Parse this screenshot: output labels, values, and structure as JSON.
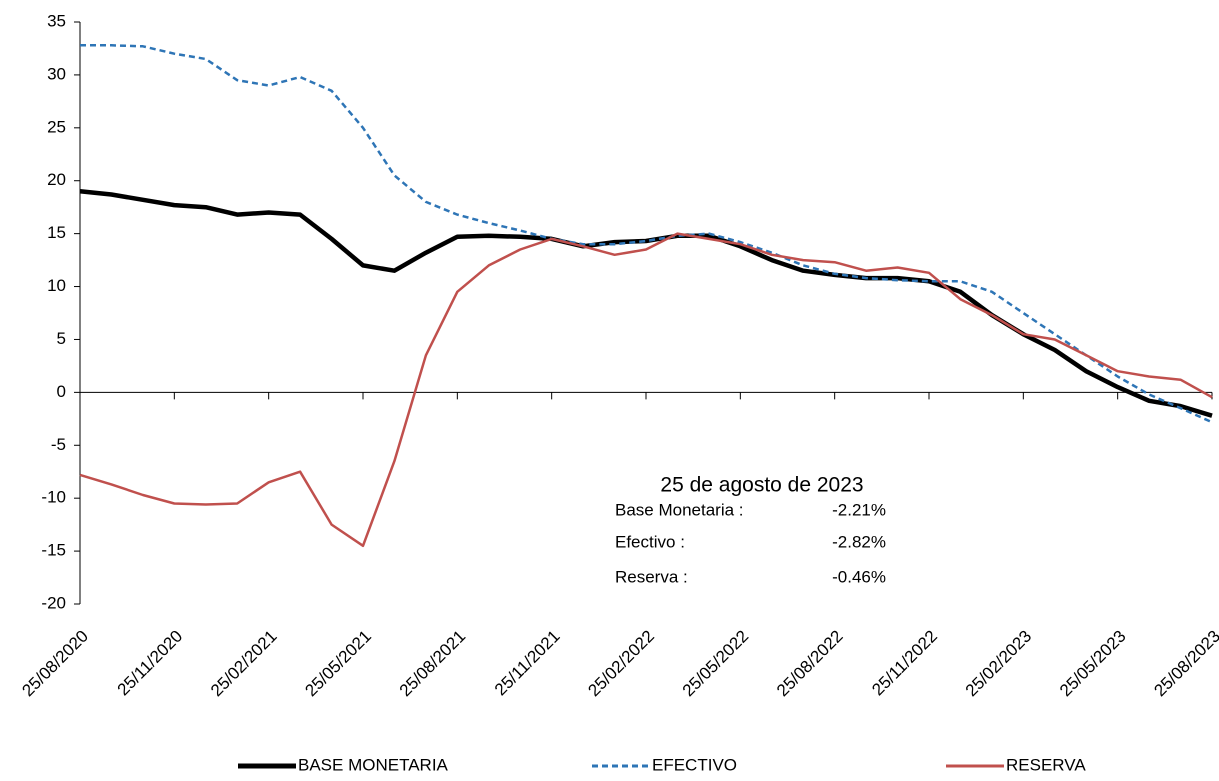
{
  "chart_data": {
    "type": "line",
    "categories": [
      "25/08/2020",
      null,
      null,
      "25/11/2020",
      null,
      null,
      "25/02/2021",
      null,
      null,
      "25/05/2021",
      null,
      null,
      "25/08/2021",
      null,
      null,
      "25/11/2021",
      null,
      null,
      "25/02/2022",
      null,
      null,
      "25/05/2022",
      null,
      null,
      "25/08/2022",
      null,
      null,
      "25/11/2022",
      null,
      null,
      "25/02/2023",
      null,
      null,
      "25/05/2023",
      null,
      null,
      "25/08/2023"
    ],
    "series": [
      {
        "name": "BASE MONETARIA",
        "color": "#000000",
        "dash": "solid",
        "values": [
          19,
          18.7,
          18.2,
          17.7,
          17.5,
          16.8,
          17.0,
          16.8,
          14.5,
          12.0,
          11.5,
          13.2,
          14.7,
          14.8,
          14.7,
          14.5,
          13.8,
          14.2,
          14.3,
          14.8,
          14.8,
          13.8,
          12.5,
          11.5,
          11.1,
          10.8,
          10.8,
          10.5,
          9.5,
          7.3,
          5.5,
          4.0,
          2.0,
          0.5,
          -0.8,
          -1.3,
          -2.21
        ]
      },
      {
        "name": "EFECTIVO",
        "color": "#2E75B6",
        "dash": "dashed",
        "values": [
          32.8,
          32.8,
          32.7,
          32.0,
          31.5,
          29.5,
          29.0,
          29.8,
          28.5,
          25.0,
          20.5,
          18.0,
          16.8,
          16.0,
          15.3,
          14.5,
          14.0,
          14.0,
          14.3,
          14.8,
          15.0,
          14.2,
          13.2,
          12.0,
          11.2,
          10.8,
          10.6,
          10.5,
          10.5,
          9.5,
          7.5,
          5.5,
          3.5,
          1.5,
          -0.2,
          -1.5,
          -2.82
        ]
      },
      {
        "name": "RESERVA",
        "color": "#C0504D",
        "dash": "solid",
        "values": [
          -7.8,
          -8.7,
          -9.7,
          -10.5,
          -10.6,
          -10.5,
          -8.5,
          -7.5,
          -12.5,
          -14.5,
          -6.5,
          3.5,
          9.5,
          12.0,
          13.5,
          14.5,
          13.8,
          13.0,
          13.5,
          15.0,
          14.5,
          14.0,
          13.0,
          12.5,
          12.3,
          11.5,
          11.8,
          11.3,
          8.8,
          7.3,
          5.5,
          5.0,
          3.5,
          2.0,
          1.5,
          1.2,
          -0.46
        ]
      }
    ],
    "ylim": [
      -20,
      35
    ],
    "yticks": [
      -20,
      -15,
      -10,
      -5,
      0,
      5,
      10,
      15,
      20,
      25,
      30,
      35
    ],
    "annotation": {
      "title": "25 de agosto de 2023",
      "rows": [
        [
          "Base Monetaria :",
          "-2.21%"
        ],
        [
          "Efectivo :",
          "-2.82%"
        ],
        [
          "Reserva :",
          "-0.46%"
        ]
      ]
    }
  }
}
